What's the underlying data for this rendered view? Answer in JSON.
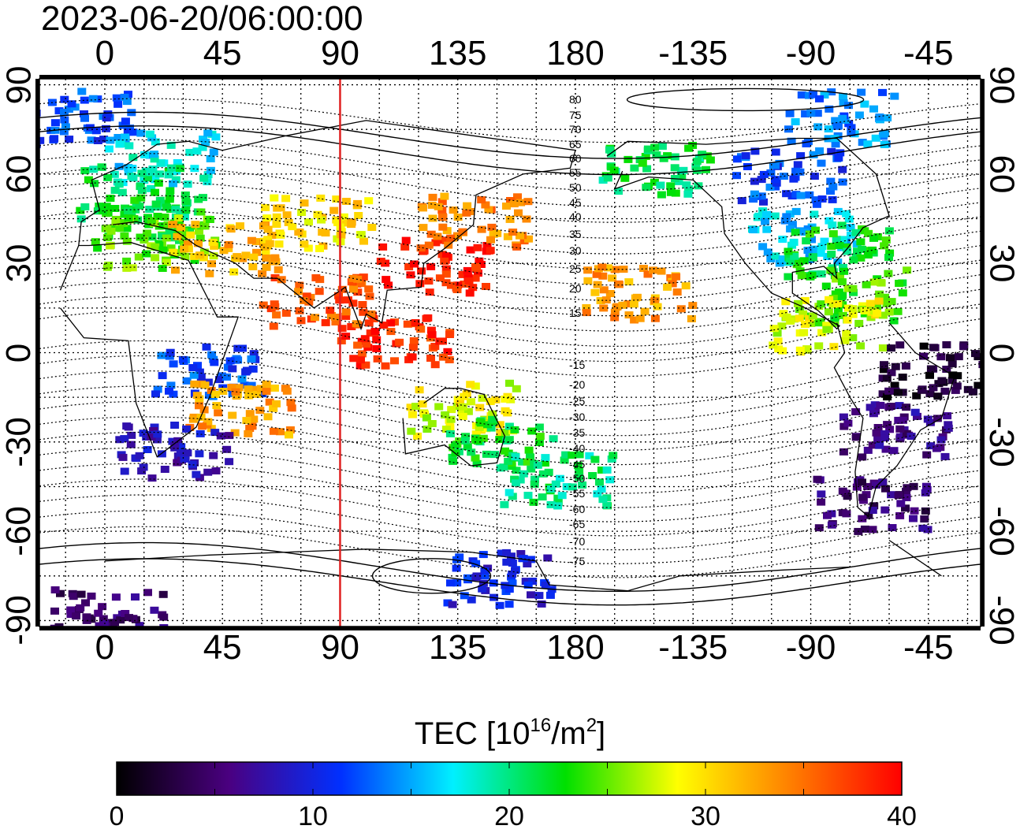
{
  "title": "2023-06-20/06:00:00",
  "top_lon_labels": [
    "0",
    "45",
    "90",
    "135",
    "180",
    "-135",
    "-90",
    "-45"
  ],
  "bottom_lon_labels": [
    "0",
    "45",
    "90",
    "135",
    "180",
    "-135",
    "-90",
    "-45"
  ],
  "left_lat_labels": [
    "90",
    "60",
    "30",
    "0",
    "-30",
    "-60",
    "-90"
  ],
  "right_lat_labels": [
    "90",
    "60",
    "30",
    "0",
    "-30",
    "-60",
    "-90"
  ],
  "contour_labels_north": [
    "80",
    "75",
    "70",
    "65",
    "60",
    "55",
    "50",
    "45",
    "40",
    "35",
    "30",
    "25",
    "20",
    "15"
  ],
  "contour_labels_south": [
    "-15",
    "-20",
    "-25",
    "-30",
    "-35",
    "-40",
    "-45",
    "-50",
    "-55",
    "-60",
    "-65",
    "-70",
    "-75"
  ],
  "marker_line": {
    "longitude": 90,
    "color": "#e02020"
  },
  "colorbar": {
    "title_main": "TEC  [10",
    "title_sup1": "16",
    "title_mid": "/m",
    "title_sup2": "2",
    "title_end": "]",
    "min": 0,
    "max": 40,
    "tick_labels": [
      "0",
      "10",
      "20",
      "30",
      "40"
    ],
    "colors": [
      "#000000",
      "#4a0080",
      "#0030ff",
      "#00f0ff",
      "#00e000",
      "#ffff00",
      "#ff8000",
      "#ff0000"
    ]
  },
  "tec_patches": [
    {
      "region": "arctic-europe",
      "lon": -10,
      "lat": 80,
      "tec": 12
    },
    {
      "region": "scandinavia",
      "lon": 20,
      "lat": 66,
      "tec": 17
    },
    {
      "region": "europe-north",
      "lon": 10,
      "lat": 55,
      "tec": 21
    },
    {
      "region": "europe",
      "lon": 15,
      "lat": 45,
      "tec": 23
    },
    {
      "region": "mediterranean",
      "lon": 20,
      "lat": 38,
      "tec": 25
    },
    {
      "region": "middle-east",
      "lon": 45,
      "lat": 36,
      "tec": 32
    },
    {
      "region": "central-asia",
      "lon": 80,
      "lat": 45,
      "tec": 30
    },
    {
      "region": "china-japan",
      "lon": 125,
      "lat": 30,
      "tec": 39
    },
    {
      "region": "east-asia-north",
      "lon": 140,
      "lat": 45,
      "tec": 34
    },
    {
      "region": "south-east-asia",
      "lon": 110,
      "lat": 5,
      "tec": 38
    },
    {
      "region": "india",
      "lon": 80,
      "lat": 18,
      "tec": 36
    },
    {
      "region": "east-africa",
      "lon": 38,
      "lat": -5,
      "tec": 12
    },
    {
      "region": "east-africa-south",
      "lon": 50,
      "lat": -18,
      "tec": 33
    },
    {
      "region": "south-africa",
      "lon": 25,
      "lat": -32,
      "tec": 8
    },
    {
      "region": "australia-north",
      "lon": 135,
      "lat": -18,
      "tec": 28
    },
    {
      "region": "australia-east",
      "lon": 150,
      "lat": -30,
      "tec": 22
    },
    {
      "region": "new-zealand",
      "lon": 172,
      "lat": -42,
      "tec": 20
    },
    {
      "region": "hawaii",
      "lon": -157,
      "lat": 21,
      "tec": 33
    },
    {
      "region": "alaska",
      "lon": -150,
      "lat": 62,
      "tec": 21
    },
    {
      "region": "canada",
      "lon": -100,
      "lat": 60,
      "tec": 12
    },
    {
      "region": "arctic-canada",
      "lon": -80,
      "lat": 80,
      "tec": 14
    },
    {
      "region": "usa",
      "lon": -95,
      "lat": 40,
      "tec": 16
    },
    {
      "region": "usa-east",
      "lon": -80,
      "lat": 35,
      "tec": 22
    },
    {
      "region": "caribbean",
      "lon": -75,
      "lat": 20,
      "tec": 24
    },
    {
      "region": "central-america",
      "lon": -85,
      "lat": 10,
      "tec": 28
    },
    {
      "region": "brazil",
      "lon": -45,
      "lat": -5,
      "tec": 2
    },
    {
      "region": "south-america",
      "lon": -60,
      "lat": -25,
      "tec": 6
    },
    {
      "region": "patagonia",
      "lon": -68,
      "lat": -50,
      "tec": 5
    },
    {
      "region": "antarctica-east",
      "lon": 150,
      "lat": -75,
      "tec": 10
    },
    {
      "region": "antarctica",
      "lon": 0,
      "lat": -87,
      "tec": 5
    }
  ]
}
